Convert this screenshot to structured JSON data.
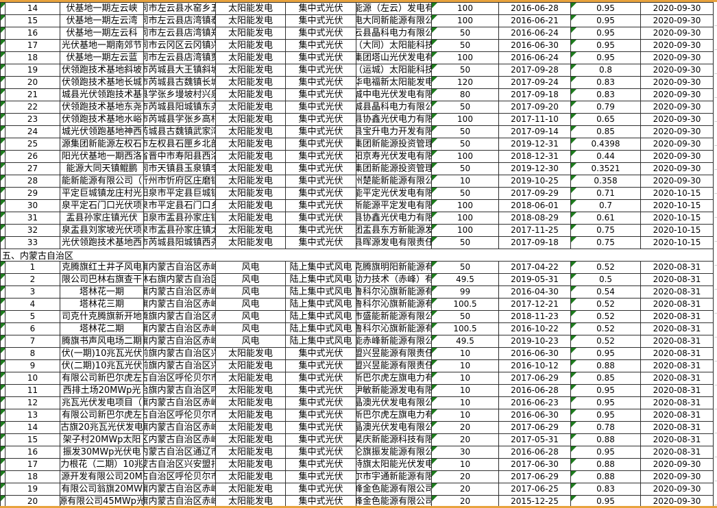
{
  "colors": {
    "accent_border": "#E8A33D",
    "error_triangle_green": "#1E7C1E",
    "grid_line": "#2F2F2F",
    "background": "#FFFFFF"
  },
  "table": {
    "sections": [
      {
        "header": null,
        "rows": [
          {
            "num": "14",
            "project": "伏基地一期左云峡",
            "location": "同市左云县水窑乡五",
            "type": "太阳能发电",
            "subtype": "集中式光伏",
            "company": "能源（左云）发电有",
            "capacity": "100",
            "date": "2016-06-28",
            "price": "0.95",
            "end": "2020-09-30"
          },
          {
            "num": "15",
            "project": "伏基地一期左云湾",
            "location": "同市左云县店湾镇泰",
            "type": "太阳能发电",
            "subtype": "集中式光伏",
            "company": "电大同新能源有限公",
            "capacity": "100",
            "date": "2016-06-21",
            "price": "0.95",
            "end": "2020-09-30"
          },
          {
            "num": "16",
            "project": "伏基地一期左云科",
            "location": "同市左云县店湾镇郑",
            "type": "太阳能发电",
            "subtype": "集中式光伏",
            "company": "云县晶科电力有限公",
            "capacity": "50",
            "date": "2016-06-24",
            "price": "0.95",
            "end": "2020-09-30"
          },
          {
            "num": "17",
            "project": "光伏基地一期南郊节",
            "location": "同市云冈区云冈镇兴",
            "type": "太阳能发电",
            "subtype": "集中式光伏",
            "company": "（大同）太阳能科技",
            "capacity": "50",
            "date": "2016-06-30",
            "price": "0.95",
            "end": "2020-09-30"
          },
          {
            "num": "18",
            "project": "伏基地一期左云蓝",
            "location": "同市左云县店湾镇贾",
            "type": "太阳能发电",
            "subtype": "集中式光伏",
            "company": "集团塔山光伏发电有",
            "capacity": "100",
            "date": "2016-06-24",
            "price": "0.95",
            "end": "2020-09-30"
          },
          {
            "num": "19",
            "project": "伏领跑技术基地斜坡",
            "location": "市芮城县大王镇斜坡",
            "type": "太阳能发电",
            "subtype": "集中式光伏",
            "company": "（运城）太阳能科技",
            "capacity": "50",
            "date": "2017-09-28",
            "price": "0.8",
            "end": "2020-09-30"
          },
          {
            "num": "20",
            "project": "伏领跑技术基地长城",
            "location": "市芮城县古魏镇长城",
            "type": "太阳能发电",
            "subtype": "集中式光伏",
            "company": "华电福新太阳能发电",
            "capacity": "120",
            "date": "2017-09-24",
            "price": "0.83",
            "end": "2020-09-30"
          },
          {
            "num": "21",
            "project": "城县光伏领跑技术基",
            "location": "县学张乡墁坡村兴泉",
            "type": "太阳能发电",
            "subtype": "集中式光伏",
            "company": "城中电光伏发电有限",
            "capacity": "80",
            "date": "2017-09-18",
            "price": "0.83",
            "end": "2020-09-30"
          },
          {
            "num": "22",
            "project": "伏领跑技术基地东尧",
            "location": "市芮城县阳城镇东尧",
            "type": "太阳能发电",
            "subtype": "集中式光伏",
            "company": "城县晶科电力有限公",
            "capacity": "50",
            "date": "2017-09-20",
            "price": "0.79",
            "end": "2020-09-30"
          },
          {
            "num": "23",
            "project": "伏领跑技术基地水峪",
            "location": "市芮城县学张乡高村",
            "type": "太阳能发电",
            "subtype": "集中式光伏",
            "company": "县协鑫光伏电力有限",
            "capacity": "100",
            "date": "2017-11-10",
            "price": "0.65",
            "end": "2020-09-30"
          },
          {
            "num": "24",
            "project": "城光伏领跑基地神西",
            "location": "芮城县古魏镇武家湾",
            "type": "太阳能发电",
            "subtype": "集中式光伏",
            "company": "县宝升电力开发有限",
            "capacity": "50",
            "date": "2017-09-14",
            "price": "0.85",
            "end": "2020-09-30"
          },
          {
            "num": "25",
            "project": "源集团新能源左权石",
            "location": "市左权县石匣乡北部",
            "type": "太阳能发电",
            "subtype": "集中式光伏",
            "company": "集团新能源投资管理",
            "capacity": "50",
            "date": "2019-12-31",
            "price": "0.4398",
            "end": "2020-09-30"
          },
          {
            "num": "26",
            "project": "阳光伏基地一期西洛",
            "location": "省晋中市寿阳县西洛",
            "type": "太阳能发电",
            "subtype": "集中式光伏",
            "company": "阳京寿光伏发电有限",
            "capacity": "100",
            "date": "2018-12-31",
            "price": "0.44",
            "end": "2020-09-30"
          },
          {
            "num": "27",
            "project": "能源大同天镇鲲鹏",
            "location": "同市天镇县玉泉镇李",
            "type": "太阳能发电",
            "subtype": "集中式光伏",
            "company": "集团新能源投资管理",
            "capacity": "50",
            "date": "2019-12-30",
            "price": "0.3521",
            "end": "2020-09-30"
          },
          {
            "num": "28",
            "project": "能新能源有限公司（",
            "location": "忻州市忻府区庄磨镇",
            "type": "太阳能发电",
            "subtype": "集中式光伏",
            "company": "州楚能新能源有限公",
            "capacity": "10",
            "date": "2019-10-25",
            "price": "0.358",
            "end": "2020-09-30"
          },
          {
            "num": "29",
            "project": "平定巨城镇龙庄村光",
            "location": "阳泉市平定县巨城镇",
            "type": "太阳能发电",
            "subtype": "集中式光伏",
            "company": "能平定光伏发电有限",
            "capacity": "50",
            "date": "2017-09-29",
            "price": "0.71",
            "end": "2020-10-15"
          },
          {
            "num": "30",
            "project": "泉平定石门口光伏项",
            "location": "泉市平定县石门口乡",
            "type": "太阳能发电",
            "subtype": "集中式光伏",
            "company": "新能源平定发电有限",
            "capacity": "100",
            "date": "2018-06-01",
            "price": "0.7",
            "end": "2020-10-15"
          },
          {
            "num": "31",
            "project": "盂县孙家庄镇光伏",
            "location": "阳泉市盂县孙家庄镇",
            "type": "太阳能发电",
            "subtype": "集中式光伏",
            "company": "县协鑫光伏电力有限",
            "capacity": "100",
            "date": "2018-08-29",
            "price": "0.61",
            "end": "2020-10-15"
          },
          {
            "num": "32",
            "project": "泉盂县刘家坡光伏项",
            "location": "泉市盂县孙家庄镇太",
            "type": "太阳能发电",
            "subtype": "集中式光伏",
            "company": "团盂县东方新能源发",
            "capacity": "100",
            "date": "2017-11-25",
            "price": "0.75",
            "end": "2020-10-15"
          },
          {
            "num": "33",
            "project": "光伏领跑技术基地西",
            "location": "市芮城县阳城镇西尧",
            "type": "太阳能发电",
            "subtype": "集中式光伏",
            "company": "县晖源发电有限责任",
            "capacity": "50",
            "date": "2017-09-18",
            "price": "0.75",
            "end": "2020-10-15"
          }
        ]
      },
      {
        "header": "五、内蒙古自治区",
        "rows": [
          {
            "num": "1",
            "project": "克腾旗红土井子风电",
            "location": "旗内蒙古自治区赤峰",
            "type": "风电",
            "subtype": "陆上集中式风电",
            "company": "克腾旗明阳新能源有",
            "capacity": "50",
            "date": "2017-04-22",
            "price": "0.52",
            "end": "2020-08-31"
          },
          {
            "num": "2",
            "project": "限公司巴林右旗查干",
            "location": "林右旗内蒙古自治区",
            "type": "风电",
            "subtype": "陆上集中式风电",
            "company": "动力技术（赤峰）有",
            "capacity": "49.5",
            "date": "2019-05-31",
            "price": "0.5",
            "end": "2020-08-31"
          },
          {
            "num": "3",
            "project": "塔林花一期",
            "location": "旗内蒙古自治区赤峰",
            "type": "风电",
            "subtype": "陆上集中式风电",
            "company": "鲁科尔沁旗新能源有",
            "capacity": "99",
            "date": "2016-04-30",
            "price": "0.54",
            "end": "2020-08-31"
          },
          {
            "num": "4",
            "project": "塔林花三期",
            "location": "旗内蒙古自治区赤峰",
            "type": "风电",
            "subtype": "陆上集中式风电",
            "company": "鲁科尔沁旗新能源有",
            "capacity": "100.5",
            "date": "2017-12-21",
            "price": "0.52",
            "end": "2020-08-31"
          },
          {
            "num": "5",
            "project": "司克什克腾旗新开地",
            "location": "腾旗内蒙古自治区赤",
            "type": "风电",
            "subtype": "陆上集中式风电",
            "company": "市盛能新能源有限公",
            "capacity": "50",
            "date": "2018-11-23",
            "price": "0.52",
            "end": "2020-08-31"
          },
          {
            "num": "6",
            "project": "塔林花二期",
            "location": "旗内蒙古自治区赤峰",
            "type": "风电",
            "subtype": "陆上集中式风电",
            "company": "鲁科尔沁旗新能源有",
            "capacity": "100.5",
            "date": "2016-10-22",
            "price": "0.52",
            "end": "2020-08-31"
          },
          {
            "num": "7",
            "project": "腾旗书声风电场二期",
            "location": "旗内蒙古自治区赤峰",
            "type": "风电",
            "subtype": "陆上集中式风电",
            "company": "能赤峰新能源有限公",
            "capacity": "49.5",
            "date": "2019-10-23",
            "price": "0.52",
            "end": "2020-08-31"
          },
          {
            "num": "8",
            "project": "伏(一期)10兆瓦光伏",
            "location": "前旗内蒙古自治区兴",
            "type": "太阳能发电",
            "subtype": "集中式光伏",
            "company": "盟兴昱能源有限责任",
            "capacity": "10",
            "date": "2016-06-30",
            "price": "0.95",
            "end": "2020-08-31"
          },
          {
            "num": "9",
            "project": "伏(二期)10兆瓦光伏",
            "location": "前旗内蒙古自治区兴",
            "type": "太阳能发电",
            "subtype": "集中式光伏",
            "company": "盟兴昱能源有限责任",
            "capacity": "10",
            "date": "2016-10-12",
            "price": "0.88",
            "end": "2020-08-31"
          },
          {
            "num": "10",
            "project": "有限公司新巴尔虎左",
            "location": "古自治区呼伦贝尔市",
            "type": "太阳能发电",
            "subtype": "集中式光伏",
            "company": "新巴尔虎左旗电力有",
            "capacity": "10",
            "date": "2017-06-29",
            "price": "0.85",
            "end": "2020-08-31"
          },
          {
            "num": "11",
            "project": "西排土场20MWp光",
            "location": "治旗内蒙古自治区呼",
            "type": "太阳能发电",
            "subtype": "集中式光伏",
            "company": "伊敏新能源发电有限",
            "capacity": "10",
            "date": "2016-06-28",
            "price": "0.95",
            "end": "2020-08-31"
          },
          {
            "num": "12",
            "project": "兆瓦光伏发电项目（",
            "location": "旗内蒙古自治区赤峰",
            "type": "太阳能发电",
            "subtype": "集中式光伏",
            "company": "晶澳光伏发电有限公",
            "capacity": "10",
            "date": "2016-06-23",
            "price": "0.95",
            "end": "2020-08-31"
          },
          {
            "num": "13",
            "project": "有限公司新巴尔虎左",
            "location": "古自治区呼伦贝尔市",
            "type": "太阳能发电",
            "subtype": "集中式光伏",
            "company": "新巴尔虎左旗电力有",
            "capacity": "10",
            "date": "2016-06-30",
            "price": "0.95",
            "end": "2020-08-31"
          },
          {
            "num": "14",
            "project": "古旗20兆瓦光伏发电",
            "location": "旗内蒙古自治区赤峰",
            "type": "太阳能发电",
            "subtype": "集中式光伏",
            "company": "晶澳光伏发电有限公",
            "capacity": "20",
            "date": "2017-06-29",
            "price": "0.78",
            "end": "2020-08-31"
          },
          {
            "num": "15",
            "project": "架子村20MWp太阳",
            "location": "区内蒙古自治区赤峰",
            "type": "太阳能发电",
            "subtype": "集中式光伏",
            "company": "昊庆新能源科技有限",
            "capacity": "20",
            "date": "2017-05-31",
            "price": "0.88",
            "end": "2020-08-31"
          },
          {
            "num": "16",
            "project": "振发30MWp光伏电",
            "location": "内蒙古自治区通辽市",
            "type": "太阳能发电",
            "subtype": "集中式光伏",
            "company": "伦旗振发能源有限公",
            "capacity": "30",
            "date": "2016-06-28",
            "price": "0.95",
            "end": "2020-08-31"
          },
          {
            "num": "17",
            "project": "力根花（二期）10兆",
            "location": "蒙古自治区兴安盟扎",
            "type": "太阳能发电",
            "subtype": "集中式光伏",
            "company": "特旗太阳能光伏发电",
            "capacity": "10",
            "date": "2017-06-30",
            "price": "0.88",
            "end": "2020-09-30"
          },
          {
            "num": "18",
            "project": "源开发有限公司20M",
            "location": "古自治区呼伦贝尔市",
            "type": "太阳能发电",
            "subtype": "集中式光伏",
            "company": "尔市宇通新能源有限",
            "capacity": "20",
            "date": "2017-06-29",
            "price": "0.88",
            "end": "2020-09-30"
          },
          {
            "num": "19",
            "project": "有限公司翁旗20MW",
            "location": "旗内蒙古自治区赤峰",
            "type": "太阳能发电",
            "subtype": "集中式光伏",
            "company": "峰金色能源有限公司",
            "capacity": "20",
            "date": "2017-06-25",
            "price": "0.83",
            "end": "2020-09-30"
          },
          {
            "num": "20",
            "project": "源有限公司45MWp光",
            "location": "旗内蒙古自治区赤峰",
            "type": "太阳能发电",
            "subtype": "集中式光伏",
            "company": "峰金色能源有限公司",
            "capacity": "20",
            "date": "2015-12-25",
            "price": "0.95",
            "end": "2020-09-30"
          }
        ]
      }
    ]
  }
}
